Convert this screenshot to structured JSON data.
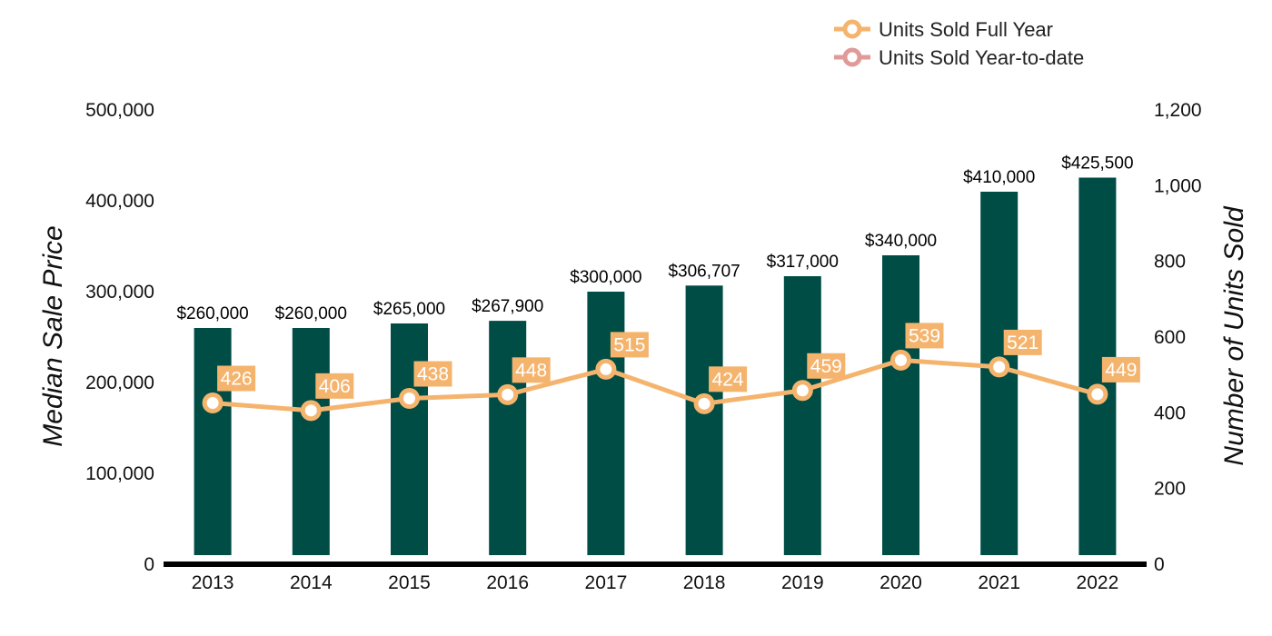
{
  "chart_data": {
    "type": "bar",
    "categories": [
      "2013",
      "2014",
      "2015",
      "2016",
      "2017",
      "2018",
      "2019",
      "2020",
      "2021",
      "2022"
    ],
    "series": [
      {
        "name": "Median Sale Price",
        "type": "bar",
        "axis": "left",
        "color": "#004d45",
        "values": [
          260000,
          260000,
          265000,
          267900,
          300000,
          306707,
          317000,
          340000,
          410000,
          425500
        ],
        "labels": [
          "$260,000",
          "$260,000",
          "$265,000",
          "$267,900",
          "$300,000",
          "$306,707",
          "$317,000",
          "$340,000",
          "$410,000",
          "$425,500"
        ]
      },
      {
        "name": "Units Sold Full Year",
        "type": "line",
        "axis": "right",
        "color": "#f5b46e",
        "values": [
          426,
          406,
          438,
          448,
          515,
          424,
          459,
          539,
          521,
          449
        ]
      }
    ],
    "legend": [
      {
        "name": "Units Sold Full Year",
        "color": "#f5b46e"
      },
      {
        "name": "Units Sold Year-to-date",
        "color": "#e09a9a"
      }
    ],
    "ylabel": "Median Sale Price",
    "y2label": "Number of Units Sold",
    "ylim": [
      0,
      500000
    ],
    "y2lim": [
      0,
      1200
    ],
    "yticks": [
      "0",
      "100,000",
      "200,000",
      "300,000",
      "400,000",
      "500,000"
    ],
    "y2ticks": [
      "0",
      "200",
      "400",
      "600",
      "800",
      "1,000",
      "1,200"
    ],
    "legend_position": "top-right"
  }
}
